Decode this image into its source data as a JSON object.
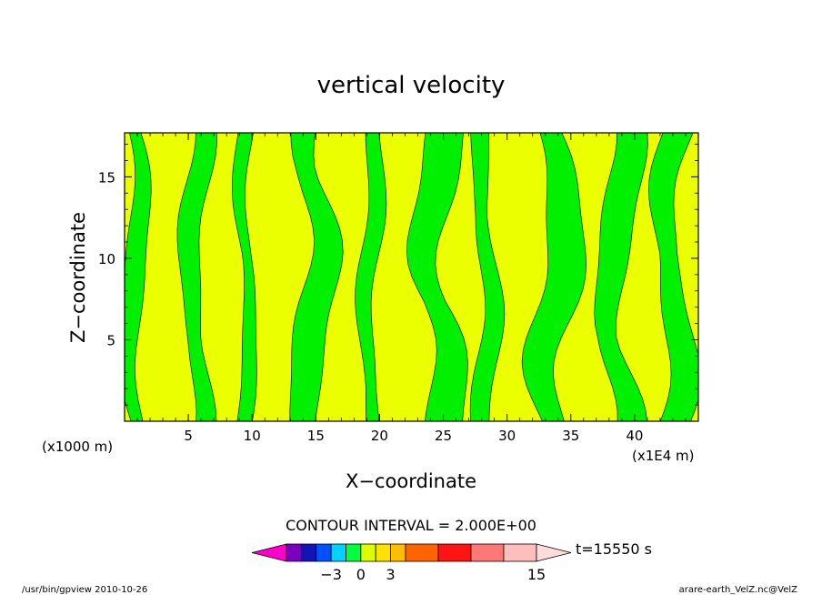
{
  "chart_data": {
    "type": "heatmap",
    "title": "vertical velocity",
    "xlabel": "X−coordinate",
    "ylabel": "Z−coordinate",
    "x_unit_left": "(x1000 m)",
    "x_unit_right": "(x1E4 m)",
    "xlim": [
      0,
      45
    ],
    "ylim": [
      0,
      17.7
    ],
    "x_ticks": [
      5,
      10,
      15,
      20,
      25,
      30,
      35,
      40
    ],
    "y_ticks": [
      5,
      10,
      15
    ],
    "contour_interval_text": "CONTOUR INTERVAL = 2.000E+00",
    "time_label": "t=15550 s",
    "colorbar": {
      "tick_labels": [
        "−3",
        "0",
        "3",
        "15"
      ],
      "tick_values": [
        -3,
        0,
        3,
        15
      ],
      "colors": [
        "#ff00cc",
        "#7a00bf",
        "#1414b4",
        "#0050ff",
        "#00d2ff",
        "#00ff3c",
        "#dcff00",
        "#ffe100",
        "#ffbe00",
        "#ff6400",
        "#ff1414",
        "#ff7878",
        "#ffbebe",
        "#ffdcdc"
      ],
      "levels": [
        -9,
        -7,
        -5,
        -3,
        -1,
        0,
        1,
        3,
        5,
        7,
        9,
        11,
        13,
        15,
        17
      ]
    },
    "fields": {
      "positive_color": "#ecff00",
      "negative_color": "#00f000",
      "note": "field alternates between weak negative (green) and weak positive (yellow) regions"
    },
    "green_columns": [
      {
        "x_center": 0.8,
        "width": 1.6
      },
      {
        "x_center": 5.6,
        "width": 1.8
      },
      {
        "x_center": 9.5,
        "width": 1.2
      },
      {
        "x_center": 14.8,
        "width": 2.6
      },
      {
        "x_center": 19.3,
        "width": 1.4
      },
      {
        "x_center": 24.6,
        "width": 3.0
      },
      {
        "x_center": 28.3,
        "width": 1.6
      },
      {
        "x_center": 33.8,
        "width": 3.0
      },
      {
        "x_center": 38.7,
        "width": 2.6
      },
      {
        "x_center": 43.0,
        "width": 2.4
      }
    ]
  },
  "footer": {
    "left": "/usr/bin/gpview  2010-10-26",
    "right": "arare-earth_VelZ.nc@VelZ"
  }
}
